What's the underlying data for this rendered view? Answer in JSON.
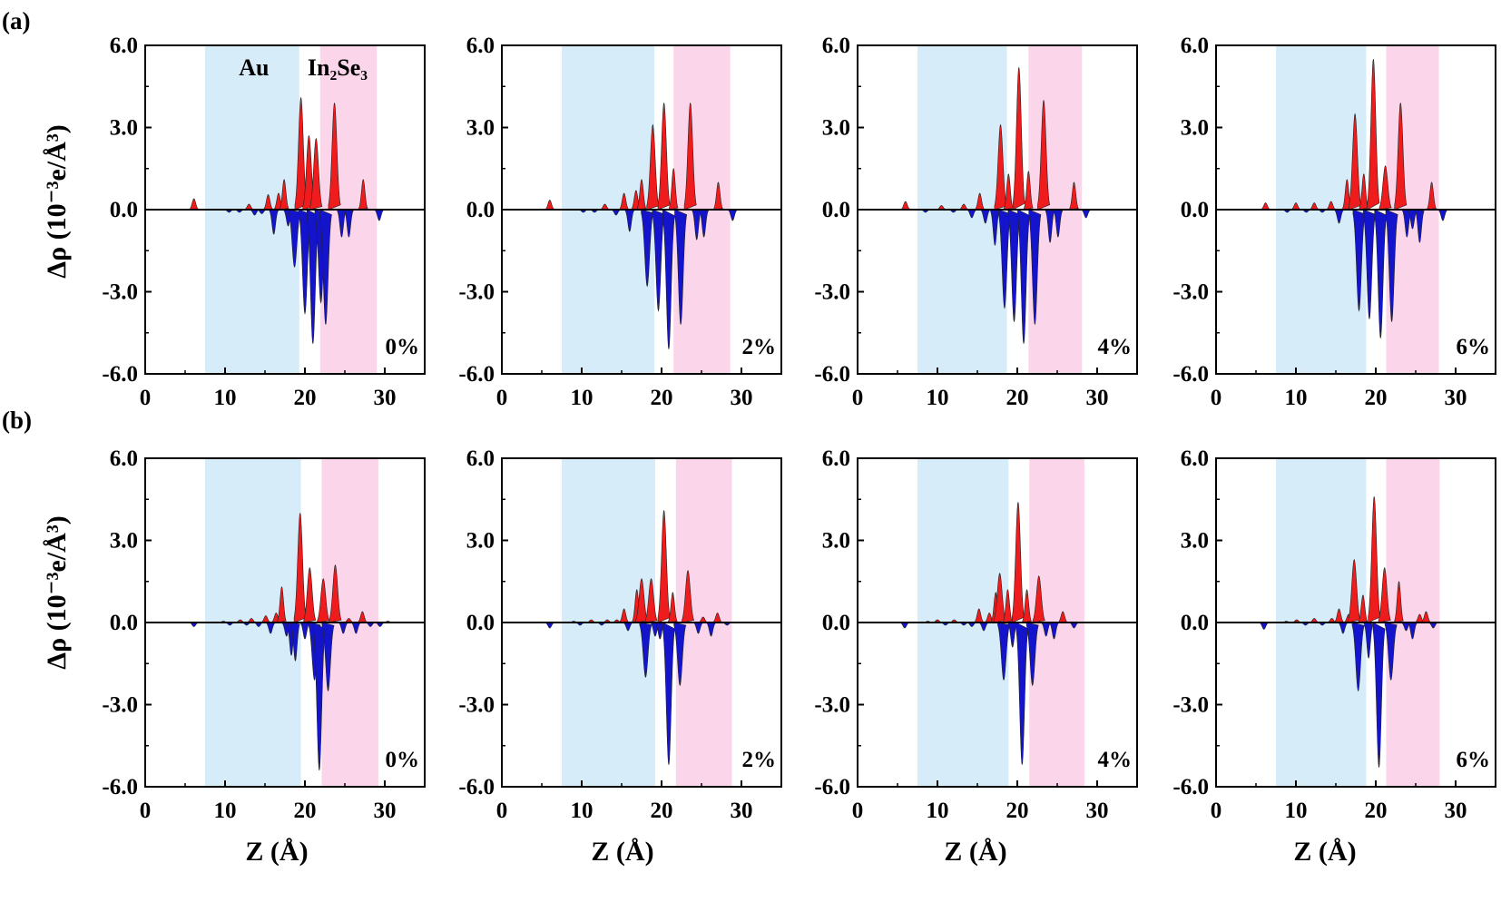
{
  "figure": {
    "row_labels": [
      "(a)",
      "(b)"
    ],
    "ylabel": "Δρ (10⁻³e/Å³)",
    "xlabel": "Z (Å)",
    "region_labels": {
      "au": "Au",
      "in2se3": "In₂Se₃"
    }
  },
  "colors": {
    "positive": "#ee1c1c",
    "negative": "#1414cc",
    "au_region": "#d6ecf9",
    "in2se3_region": "#fbd6ea",
    "axis": "#000000"
  },
  "chart_data": [
    {
      "type": "area",
      "row": "(a)",
      "strain": "0%",
      "xlim": [
        0,
        35
      ],
      "ylim": [
        -6.0,
        6.0
      ],
      "x_ticks": [
        "0",
        "10",
        "20",
        "30"
      ],
      "y_ticks": [
        "-6.0",
        "-3.0",
        "0.0",
        "3.0",
        "6.0"
      ],
      "regions": {
        "au": [
          7.5,
          19.3
        ],
        "in2se3": [
          21.9,
          29.0
        ]
      },
      "peaks": [
        [
          6.1,
          0.4
        ],
        [
          10.5,
          -0.1
        ],
        [
          11.8,
          -0.1
        ],
        [
          13.0,
          0.2
        ],
        [
          13.7,
          -0.2
        ],
        [
          14.6,
          -0.15
        ],
        [
          15.4,
          0.55
        ],
        [
          16.1,
          -0.9
        ],
        [
          16.7,
          0.6
        ],
        [
          17.4,
          1.1
        ],
        [
          17.9,
          -0.6
        ],
        [
          18.7,
          -2.1
        ],
        [
          19.5,
          4.1
        ],
        [
          20.0,
          -3.8
        ],
        [
          20.5,
          2.7
        ],
        [
          21.0,
          -4.9
        ],
        [
          21.4,
          2.6
        ],
        [
          22.0,
          -3.4
        ],
        [
          22.6,
          -4.2
        ],
        [
          23.7,
          3.9
        ],
        [
          24.6,
          -1.0
        ],
        [
          25.5,
          -1.0
        ],
        [
          27.3,
          1.1
        ],
        [
          29.3,
          -0.4
        ]
      ]
    },
    {
      "type": "area",
      "row": "(a)",
      "strain": "2%",
      "xlim": [
        0,
        35
      ],
      "ylim": [
        -6.0,
        6.0
      ],
      "x_ticks": [
        "0",
        "10",
        "20",
        "30"
      ],
      "y_ticks": [
        "-6.0",
        "-3.0",
        "0.0",
        "3.0",
        "6.0"
      ],
      "regions": {
        "au": [
          7.5,
          19.1
        ],
        "in2se3": [
          21.5,
          28.6
        ]
      },
      "peaks": [
        [
          6.0,
          0.35
        ],
        [
          10.2,
          -0.1
        ],
        [
          11.6,
          -0.1
        ],
        [
          12.9,
          0.2
        ],
        [
          14.3,
          -0.2
        ],
        [
          15.3,
          0.6
        ],
        [
          16.0,
          -0.8
        ],
        [
          16.8,
          0.7
        ],
        [
          17.5,
          1.1
        ],
        [
          18.2,
          -2.8
        ],
        [
          18.9,
          3.1
        ],
        [
          19.6,
          -3.7
        ],
        [
          20.3,
          3.9
        ],
        [
          20.9,
          -5.1
        ],
        [
          21.5,
          1.5
        ],
        [
          22.4,
          -4.2
        ],
        [
          23.6,
          3.9
        ],
        [
          24.4,
          -1.1
        ],
        [
          25.3,
          -1.0
        ],
        [
          27.1,
          1.0
        ],
        [
          28.9,
          -0.4
        ]
      ]
    },
    {
      "type": "area",
      "row": "(a)",
      "strain": "4%",
      "xlim": [
        0,
        35
      ],
      "ylim": [
        -6.0,
        6.0
      ],
      "x_ticks": [
        "0",
        "10",
        "20",
        "30"
      ],
      "y_ticks": [
        "-6.0",
        "-3.0",
        "0.0",
        "3.0",
        "6.0"
      ],
      "regions": {
        "au": [
          7.5,
          18.7
        ],
        "in2se3": [
          21.4,
          28.1
        ]
      },
      "peaks": [
        [
          6.0,
          0.3
        ],
        [
          8.5,
          -0.1
        ],
        [
          10.5,
          0.15
        ],
        [
          12.0,
          -0.1
        ],
        [
          13.3,
          0.2
        ],
        [
          14.3,
          -0.3
        ],
        [
          15.3,
          0.6
        ],
        [
          16.0,
          -0.5
        ],
        [
          17.2,
          -1.3
        ],
        [
          17.9,
          3.1
        ],
        [
          18.4,
          -3.6
        ],
        [
          18.9,
          1.3
        ],
        [
          19.6,
          -4.1
        ],
        [
          20.2,
          5.2
        ],
        [
          20.8,
          -4.9
        ],
        [
          21.4,
          1.4
        ],
        [
          22.2,
          -4.2
        ],
        [
          23.3,
          4.0
        ],
        [
          24.1,
          -1.2
        ],
        [
          25.1,
          -1.0
        ],
        [
          27.1,
          1.0
        ],
        [
          28.6,
          -0.3
        ]
      ]
    },
    {
      "type": "area",
      "row": "(a)",
      "strain": "6%",
      "xlim": [
        0,
        35
      ],
      "ylim": [
        -6.0,
        6.0
      ],
      "x_ticks": [
        "0",
        "10",
        "20",
        "30"
      ],
      "y_ticks": [
        "-6.0",
        "-3.0",
        "0.0",
        "3.0",
        "6.0"
      ],
      "regions": {
        "au": [
          7.5,
          18.8
        ],
        "in2se3": [
          21.3,
          27.9
        ]
      },
      "peaks": [
        [
          6.2,
          0.25
        ],
        [
          8.9,
          -0.1
        ],
        [
          10.0,
          0.25
        ],
        [
          11.3,
          -0.1
        ],
        [
          12.3,
          0.25
        ],
        [
          13.3,
          -0.1
        ],
        [
          14.4,
          0.3
        ],
        [
          15.4,
          -0.5
        ],
        [
          16.4,
          1.1
        ],
        [
          17.4,
          3.5
        ],
        [
          17.9,
          -3.7
        ],
        [
          18.5,
          1.3
        ],
        [
          19.2,
          -4.0
        ],
        [
          19.7,
          5.5
        ],
        [
          20.6,
          -4.7
        ],
        [
          21.2,
          1.6
        ],
        [
          22.0,
          -4.1
        ],
        [
          23.1,
          3.9
        ],
        [
          23.9,
          -1.0
        ],
        [
          24.6,
          -0.7
        ],
        [
          25.5,
          -1.2
        ],
        [
          27.0,
          1.0
        ],
        [
          28.4,
          -0.4
        ]
      ]
    },
    {
      "type": "area",
      "row": "(b)",
      "strain": "0%",
      "xlim": [
        0,
        35
      ],
      "ylim": [
        -6.0,
        6.0
      ],
      "x_ticks": [
        "0",
        "10",
        "20",
        "30"
      ],
      "y_ticks": [
        "-6.0",
        "-3.0",
        "0.0",
        "3.0",
        "6.0"
      ],
      "regions": {
        "au": [
          7.5,
          19.5
        ],
        "in2se3": [
          22.1,
          29.2
        ]
      },
      "peaks": [
        [
          6.1,
          -0.15
        ],
        [
          9.8,
          0.05
        ],
        [
          10.6,
          -0.1
        ],
        [
          11.9,
          0.1
        ],
        [
          12.7,
          -0.1
        ],
        [
          13.3,
          0.15
        ],
        [
          14.2,
          -0.15
        ],
        [
          15.1,
          0.25
        ],
        [
          15.7,
          -0.4
        ],
        [
          16.4,
          0.35
        ],
        [
          17.1,
          1.3
        ],
        [
          17.7,
          -0.5
        ],
        [
          18.3,
          -1.2
        ],
        [
          18.8,
          -1.4
        ],
        [
          19.4,
          4.0
        ],
        [
          20.0,
          -0.6
        ],
        [
          20.6,
          2.0
        ],
        [
          21.2,
          -2.1
        ],
        [
          21.8,
          -5.4
        ],
        [
          22.3,
          1.6
        ],
        [
          22.9,
          -2.5
        ],
        [
          23.8,
          2.1
        ],
        [
          24.8,
          -0.4
        ],
        [
          25.5,
          0.15
        ],
        [
          26.4,
          -0.4
        ],
        [
          27.2,
          0.4
        ],
        [
          28.2,
          -0.15
        ],
        [
          29.4,
          -0.15
        ],
        [
          30.4,
          0.05
        ]
      ]
    },
    {
      "type": "area",
      "row": "(b)",
      "strain": "2%",
      "xlim": [
        0,
        35
      ],
      "ylim": [
        -6.0,
        6.0
      ],
      "x_ticks": [
        "0",
        "10",
        "20",
        "30"
      ],
      "y_ticks": [
        "-6.0",
        "-3.0",
        "0.0",
        "3.0",
        "6.0"
      ],
      "regions": {
        "au": [
          7.5,
          19.2
        ],
        "in2se3": [
          21.8,
          28.8
        ]
      },
      "peaks": [
        [
          6.0,
          -0.2
        ],
        [
          9.0,
          0.05
        ],
        [
          9.8,
          -0.1
        ],
        [
          11.2,
          0.1
        ],
        [
          12.5,
          -0.1
        ],
        [
          13.2,
          0.1
        ],
        [
          14.4,
          0.1
        ],
        [
          15.3,
          0.5
        ],
        [
          15.8,
          -0.3
        ],
        [
          16.9,
          1.2
        ],
        [
          17.5,
          1.6
        ],
        [
          18.0,
          -2.0
        ],
        [
          18.7,
          1.6
        ],
        [
          19.2,
          -0.5
        ],
        [
          19.8,
          -0.6
        ],
        [
          20.3,
          4.1
        ],
        [
          20.9,
          -5.2
        ],
        [
          21.4,
          1.1
        ],
        [
          22.3,
          -2.3
        ],
        [
          23.3,
          1.9
        ],
        [
          24.6,
          -0.4
        ],
        [
          25.2,
          0.2
        ],
        [
          26.2,
          -0.5
        ],
        [
          27.0,
          0.35
        ],
        [
          28.2,
          -0.1
        ]
      ]
    },
    {
      "type": "area",
      "row": "(b)",
      "strain": "4%",
      "xlim": [
        0,
        35
      ],
      "ylim": [
        -6.0,
        6.0
      ],
      "x_ticks": [
        "0",
        "10",
        "20",
        "30"
      ],
      "y_ticks": [
        "-6.0",
        "-3.0",
        "0.0",
        "3.0",
        "6.0"
      ],
      "regions": {
        "au": [
          7.5,
          18.9
        ],
        "in2se3": [
          21.5,
          28.4
        ]
      },
      "peaks": [
        [
          5.9,
          -0.2
        ],
        [
          8.8,
          0.05
        ],
        [
          10.0,
          0.1
        ],
        [
          11.0,
          -0.1
        ],
        [
          12.1,
          0.1
        ],
        [
          13.3,
          -0.1
        ],
        [
          14.3,
          -0.15
        ],
        [
          15.2,
          0.5
        ],
        [
          15.8,
          -0.3
        ],
        [
          16.5,
          0.35
        ],
        [
          17.3,
          1.1
        ],
        [
          17.8,
          1.8
        ],
        [
          18.3,
          -2.1
        ],
        [
          18.8,
          1.2
        ],
        [
          19.4,
          -0.9
        ],
        [
          20.1,
          4.4
        ],
        [
          20.6,
          -5.2
        ],
        [
          21.2,
          1.2
        ],
        [
          21.9,
          -2.3
        ],
        [
          22.7,
          1.7
        ],
        [
          23.6,
          -0.5
        ],
        [
          24.6,
          -0.6
        ],
        [
          25.7,
          0.4
        ],
        [
          27.1,
          -0.2
        ]
      ]
    },
    {
      "type": "area",
      "row": "(b)",
      "strain": "6%",
      "xlim": [
        0,
        35
      ],
      "ylim": [
        -6.0,
        6.0
      ],
      "x_ticks": [
        "0",
        "10",
        "20",
        "30"
      ],
      "y_ticks": [
        "-6.0",
        "-3.0",
        "0.0",
        "3.0",
        "6.0"
      ],
      "regions": {
        "au": [
          7.5,
          18.8
        ],
        "in2se3": [
          21.3,
          28.0
        ]
      },
      "peaks": [
        [
          6.0,
          -0.25
        ],
        [
          8.8,
          0.05
        ],
        [
          10.1,
          0.1
        ],
        [
          11.2,
          -0.1
        ],
        [
          12.3,
          0.15
        ],
        [
          13.3,
          -0.1
        ],
        [
          14.5,
          0.15
        ],
        [
          15.4,
          0.5
        ],
        [
          15.9,
          -0.4
        ],
        [
          16.6,
          0.3
        ],
        [
          17.3,
          2.3
        ],
        [
          17.8,
          -2.5
        ],
        [
          18.4,
          1.0
        ],
        [
          19.1,
          -1.3
        ],
        [
          19.8,
          4.6
        ],
        [
          20.4,
          -5.3
        ],
        [
          21.1,
          2.0
        ],
        [
          21.9,
          -2.1
        ],
        [
          22.9,
          1.5
        ],
        [
          23.8,
          -0.3
        ],
        [
          24.6,
          -0.6
        ],
        [
          25.5,
          0.3
        ],
        [
          26.3,
          0.4
        ],
        [
          27.2,
          -0.2
        ]
      ]
    }
  ]
}
